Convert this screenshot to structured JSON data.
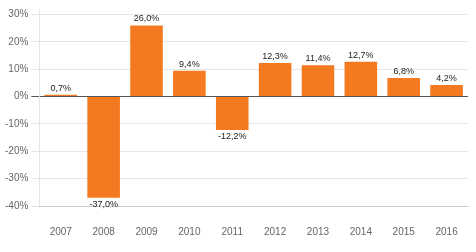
{
  "chart_data": {
    "type": "bar",
    "categories": [
      "2007",
      "2008",
      "2009",
      "2010",
      "2011",
      "2012",
      "2013",
      "2014",
      "2015",
      "2016"
    ],
    "values": [
      0.7,
      -37.0,
      26.0,
      9.4,
      -12.2,
      12.3,
      11.4,
      12.7,
      6.8,
      4.2
    ],
    "value_labels": [
      "0,7%",
      "-37,0%",
      "26,0%",
      "9,4%",
      "-12,2%",
      "12,3%",
      "11,4%",
      "12,7%",
      "6,8%",
      "4,2%"
    ],
    "color": "#F47920",
    "ylim": [
      -40,
      32
    ],
    "yticks": [
      {
        "value": -40,
        "label": "-40%"
      },
      {
        "value": -30,
        "label": "-30%"
      },
      {
        "value": -20,
        "label": "-20%"
      },
      {
        "value": -10,
        "label": "-10%"
      },
      {
        "value": 0,
        "label": "0%"
      },
      {
        "value": 10,
        "label": "10%"
      },
      {
        "value": 20,
        "label": "20%"
      },
      {
        "value": 30,
        "label": "30%"
      }
    ],
    "grid": true,
    "data_labels": true
  }
}
